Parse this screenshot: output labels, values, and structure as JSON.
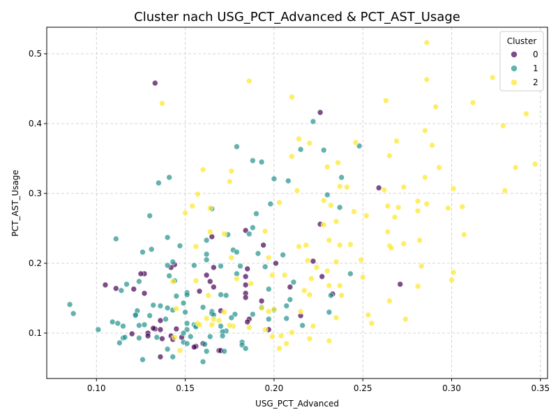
{
  "chart_data": {
    "type": "scatter",
    "title": "Cluster nach USG_PCT_Advanced & PCT_AST_Usage",
    "xlabel": "USG_PCT_Advanced",
    "ylabel": "PCT_AST_Usage",
    "xlim": [
      0.072,
      0.354
    ],
    "ylim": [
      0.035,
      0.538
    ],
    "xticks": [
      0.1,
      0.15,
      0.2,
      0.25,
      0.3,
      0.35
    ],
    "xtick_labels": [
      "0.10",
      "0.15",
      "0.20",
      "0.25",
      "0.30",
      "0.35"
    ],
    "yticks": [
      0.1,
      0.2,
      0.3,
      0.4,
      0.5
    ],
    "ytick_labels": [
      "0.1",
      "0.2",
      "0.3",
      "0.4",
      "0.5"
    ],
    "grid": true,
    "legend": {
      "title": "Cluster",
      "placement": "top-right",
      "entries": [
        "0",
        "1",
        "2"
      ]
    },
    "colors": {
      "0": "#440154",
      "1": "#21918c",
      "2": "#fde725"
    },
    "series": [
      {
        "name": "0",
        "points": [
          [
            0.133,
            0.458
          ],
          [
            0.226,
            0.416
          ],
          [
            0.259,
            0.308
          ],
          [
            0.226,
            0.256
          ],
          [
            0.184,
            0.247
          ],
          [
            0.165,
            0.238
          ],
          [
            0.194,
            0.226
          ],
          [
            0.222,
            0.203
          ],
          [
            0.201,
            0.2
          ],
          [
            0.144,
            0.198
          ],
          [
            0.142,
            0.194
          ],
          [
            0.166,
            0.194
          ],
          [
            0.185,
            0.192
          ],
          [
            0.127,
            0.185
          ],
          [
            0.125,
            0.185
          ],
          [
            0.184,
            0.181
          ],
          [
            0.227,
            0.181
          ],
          [
            0.162,
            0.183
          ],
          [
            0.105,
            0.169
          ],
          [
            0.111,
            0.164
          ],
          [
            0.121,
            0.163
          ],
          [
            0.127,
            0.157
          ],
          [
            0.166,
            0.166
          ],
          [
            0.209,
            0.166
          ],
          [
            0.184,
            0.169
          ],
          [
            0.271,
            0.17
          ],
          [
            0.164,
            0.174
          ],
          [
            0.158,
            0.16
          ],
          [
            0.184,
            0.157
          ],
          [
            0.233,
            0.156
          ],
          [
            0.184,
            0.151
          ],
          [
            0.193,
            0.146
          ],
          [
            0.215,
            0.125
          ],
          [
            0.136,
            0.118
          ],
          [
            0.186,
            0.12
          ],
          [
            0.185,
            0.116
          ],
          [
            0.145,
            0.106
          ],
          [
            0.133,
            0.106
          ],
          [
            0.197,
            0.105
          ],
          [
            0.136,
            0.105
          ],
          [
            0.129,
            0.1
          ],
          [
            0.12,
            0.099
          ],
          [
            0.129,
            0.096
          ],
          [
            0.148,
            0.094
          ],
          [
            0.142,
            0.096
          ],
          [
            0.137,
            0.092
          ],
          [
            0.143,
            0.091
          ],
          [
            0.136,
            0.066
          ],
          [
            0.156,
            0.081
          ],
          [
            0.155,
            0.08
          ],
          [
            0.16,
            0.085
          ],
          [
            0.169,
            0.075
          ],
          [
            0.17,
            0.075
          ],
          [
            0.132,
            0.107
          ],
          [
            0.17,
            0.132
          ]
        ]
      },
      {
        "name": "1",
        "points": [
          [
            0.222,
            0.403
          ],
          [
            0.179,
            0.367
          ],
          [
            0.215,
            0.363
          ],
          [
            0.228,
            0.362
          ],
          [
            0.248,
            0.368
          ],
          [
            0.188,
            0.347
          ],
          [
            0.193,
            0.345
          ],
          [
            0.238,
            0.323
          ],
          [
            0.141,
            0.323
          ],
          [
            0.2,
            0.321
          ],
          [
            0.208,
            0.318
          ],
          [
            0.135,
            0.315
          ],
          [
            0.23,
            0.298
          ],
          [
            0.198,
            0.285
          ],
          [
            0.237,
            0.28
          ],
          [
            0.165,
            0.278
          ],
          [
            0.19,
            0.271
          ],
          [
            0.13,
            0.268
          ],
          [
            0.188,
            0.251
          ],
          [
            0.174,
            0.241
          ],
          [
            0.186,
            0.242
          ],
          [
            0.14,
            0.237
          ],
          [
            0.111,
            0.235
          ],
          [
            0.162,
            0.233
          ],
          [
            0.147,
            0.225
          ],
          [
            0.131,
            0.22
          ],
          [
            0.177,
            0.219
          ],
          [
            0.126,
            0.216
          ],
          [
            0.179,
            0.216
          ],
          [
            0.205,
            0.212
          ],
          [
            0.191,
            0.214
          ],
          [
            0.162,
            0.213
          ],
          [
            0.162,
            0.205
          ],
          [
            0.143,
            0.202
          ],
          [
            0.155,
            0.197
          ],
          [
            0.14,
            0.197
          ],
          [
            0.17,
            0.196
          ],
          [
            0.181,
            0.196
          ],
          [
            0.195,
            0.195
          ],
          [
            0.243,
            0.185
          ],
          [
            0.179,
            0.185
          ],
          [
            0.141,
            0.182
          ],
          [
            0.211,
            0.173
          ],
          [
            0.144,
            0.175
          ],
          [
            0.117,
            0.17
          ],
          [
            0.124,
            0.174
          ],
          [
            0.114,
            0.161
          ],
          [
            0.145,
            0.153
          ],
          [
            0.17,
            0.155
          ],
          [
            0.173,
            0.154
          ],
          [
            0.16,
            0.137
          ],
          [
            0.209,
            0.148
          ],
          [
            0.197,
            0.163
          ],
          [
            0.151,
            0.158
          ],
          [
            0.151,
            0.155
          ],
          [
            0.149,
            0.143
          ],
          [
            0.132,
            0.14
          ],
          [
            0.136,
            0.139
          ],
          [
            0.14,
            0.136
          ],
          [
            0.123,
            0.132
          ],
          [
            0.143,
            0.133
          ],
          [
            0.15,
            0.13
          ],
          [
            0.165,
            0.131
          ],
          [
            0.188,
            0.127
          ],
          [
            0.178,
            0.127
          ],
          [
            0.176,
            0.122
          ],
          [
            0.207,
            0.121
          ],
          [
            0.197,
            0.12
          ],
          [
            0.231,
            0.13
          ],
          [
            0.2,
            0.133
          ],
          [
            0.207,
            0.139
          ],
          [
            0.193,
            0.137
          ],
          [
            0.165,
            0.128
          ],
          [
            0.166,
            0.126
          ],
          [
            0.122,
            0.125
          ],
          [
            0.122,
            0.126
          ],
          [
            0.13,
            0.125
          ],
          [
            0.139,
            0.12
          ],
          [
            0.109,
            0.116
          ],
          [
            0.112,
            0.114
          ],
          [
            0.115,
            0.11
          ],
          [
            0.127,
            0.112
          ],
          [
            0.124,
            0.111
          ],
          [
            0.151,
            0.114
          ],
          [
            0.155,
            0.112
          ],
          [
            0.156,
            0.111
          ],
          [
            0.156,
            0.109
          ],
          [
            0.17,
            0.11
          ],
          [
            0.173,
            0.103
          ],
          [
            0.171,
            0.102
          ],
          [
            0.151,
            0.105
          ],
          [
            0.149,
            0.1
          ],
          [
            0.101,
            0.105
          ],
          [
            0.085,
            0.141
          ],
          [
            0.087,
            0.128
          ],
          [
            0.115,
            0.093
          ],
          [
            0.116,
            0.094
          ],
          [
            0.124,
            0.093
          ],
          [
            0.134,
            0.094
          ],
          [
            0.153,
            0.095
          ],
          [
            0.164,
            0.095
          ],
          [
            0.171,
            0.096
          ],
          [
            0.182,
            0.087
          ],
          [
            0.113,
            0.086
          ],
          [
            0.149,
            0.087
          ],
          [
            0.151,
            0.085
          ],
          [
            0.161,
            0.084
          ],
          [
            0.182,
            0.083
          ],
          [
            0.14,
            0.077
          ],
          [
            0.162,
            0.074
          ],
          [
            0.172,
            0.074
          ],
          [
            0.184,
            0.078
          ],
          [
            0.143,
            0.066
          ],
          [
            0.126,
            0.062
          ],
          [
            0.16,
            0.059
          ],
          [
            0.216,
            0.111
          ],
          [
            0.232,
            0.154
          ]
        ]
      },
      {
        "name": "2",
        "points": [
          [
            0.286,
            0.516
          ],
          [
            0.286,
            0.463
          ],
          [
            0.186,
            0.461
          ],
          [
            0.323,
            0.466
          ],
          [
            0.21,
            0.438
          ],
          [
            0.137,
            0.429
          ],
          [
            0.263,
            0.433
          ],
          [
            0.312,
            0.43
          ],
          [
            0.291,
            0.424
          ],
          [
            0.342,
            0.414
          ],
          [
            0.329,
            0.397
          ],
          [
            0.285,
            0.39
          ],
          [
            0.214,
            0.378
          ],
          [
            0.22,
            0.372
          ],
          [
            0.246,
            0.373
          ],
          [
            0.269,
            0.375
          ],
          [
            0.289,
            0.369
          ],
          [
            0.21,
            0.353
          ],
          [
            0.265,
            0.354
          ],
          [
            0.236,
            0.344
          ],
          [
            0.23,
            0.338
          ],
          [
            0.293,
            0.337
          ],
          [
            0.336,
            0.337
          ],
          [
            0.347,
            0.342
          ],
          [
            0.16,
            0.334
          ],
          [
            0.176,
            0.332
          ],
          [
            0.285,
            0.323
          ],
          [
            0.175,
            0.317
          ],
          [
            0.237,
            0.31
          ],
          [
            0.241,
            0.309
          ],
          [
            0.262,
            0.305
          ],
          [
            0.273,
            0.309
          ],
          [
            0.301,
            0.307
          ],
          [
            0.33,
            0.304
          ],
          [
            0.213,
            0.304
          ],
          [
            0.157,
            0.299
          ],
          [
            0.203,
            0.287
          ],
          [
            0.232,
            0.283
          ],
          [
            0.228,
            0.29
          ],
          [
            0.264,
            0.282
          ],
          [
            0.281,
            0.289
          ],
          [
            0.286,
            0.285
          ],
          [
            0.27,
            0.28
          ],
          [
            0.298,
            0.279
          ],
          [
            0.306,
            0.281
          ],
          [
            0.154,
            0.282
          ],
          [
            0.164,
            0.279
          ],
          [
            0.15,
            0.272
          ],
          [
            0.245,
            0.274
          ],
          [
            0.252,
            0.268
          ],
          [
            0.268,
            0.266
          ],
          [
            0.281,
            0.275
          ],
          [
            0.235,
            0.26
          ],
          [
            0.228,
            0.255
          ],
          [
            0.195,
            0.246
          ],
          [
            0.164,
            0.245
          ],
          [
            0.172,
            0.242
          ],
          [
            0.264,
            0.245
          ],
          [
            0.307,
            0.241
          ],
          [
            0.231,
            0.233
          ],
          [
            0.282,
            0.233
          ],
          [
            0.273,
            0.228
          ],
          [
            0.214,
            0.224
          ],
          [
            0.218,
            0.226
          ],
          [
            0.237,
            0.226
          ],
          [
            0.243,
            0.227
          ],
          [
            0.265,
            0.225
          ],
          [
            0.266,
            0.222
          ],
          [
            0.156,
            0.224
          ],
          [
            0.249,
            0.205
          ],
          [
            0.219,
            0.204
          ],
          [
            0.176,
            0.208
          ],
          [
            0.197,
            0.208
          ],
          [
            0.235,
            0.202
          ],
          [
            0.283,
            0.196
          ],
          [
            0.301,
            0.187
          ],
          [
            0.221,
            0.178
          ],
          [
            0.179,
            0.178
          ],
          [
            0.224,
            0.194
          ],
          [
            0.23,
            0.189
          ],
          [
            0.199,
            0.183
          ],
          [
            0.206,
            0.183
          ],
          [
            0.25,
            0.18
          ],
          [
            0.3,
            0.176
          ],
          [
            0.143,
            0.174
          ],
          [
            0.156,
            0.175
          ],
          [
            0.187,
            0.171
          ],
          [
            0.231,
            0.168
          ],
          [
            0.237,
            0.168
          ],
          [
            0.281,
            0.167
          ],
          [
            0.217,
            0.161
          ],
          [
            0.163,
            0.154
          ],
          [
            0.22,
            0.155
          ],
          [
            0.238,
            0.154
          ],
          [
            0.193,
            0.136
          ],
          [
            0.2,
            0.134
          ],
          [
            0.215,
            0.131
          ],
          [
            0.235,
            0.122
          ],
          [
            0.253,
            0.126
          ],
          [
            0.265,
            0.146
          ],
          [
            0.274,
            0.12
          ],
          [
            0.162,
            0.121
          ],
          [
            0.145,
            0.135
          ],
          [
            0.157,
            0.114
          ],
          [
            0.165,
            0.112
          ],
          [
            0.177,
            0.11
          ],
          [
            0.186,
            0.108
          ],
          [
            0.195,
            0.105
          ],
          [
            0.222,
            0.11
          ],
          [
            0.255,
            0.114
          ],
          [
            0.199,
            0.095
          ],
          [
            0.204,
            0.096
          ],
          [
            0.21,
            0.101
          ],
          [
            0.231,
            0.089
          ],
          [
            0.22,
            0.092
          ],
          [
            0.203,
            0.078
          ],
          [
            0.207,
            0.085
          ],
          [
            0.144,
            0.094
          ],
          [
            0.147,
            0.075
          ],
          [
            0.175,
            0.111
          ],
          [
            0.172,
            0.13
          ],
          [
            0.197,
            0.131
          ],
          [
            0.169,
            0.118
          ],
          [
            0.158,
            0.112
          ],
          [
            0.166,
            0.12
          ]
        ]
      }
    ]
  }
}
